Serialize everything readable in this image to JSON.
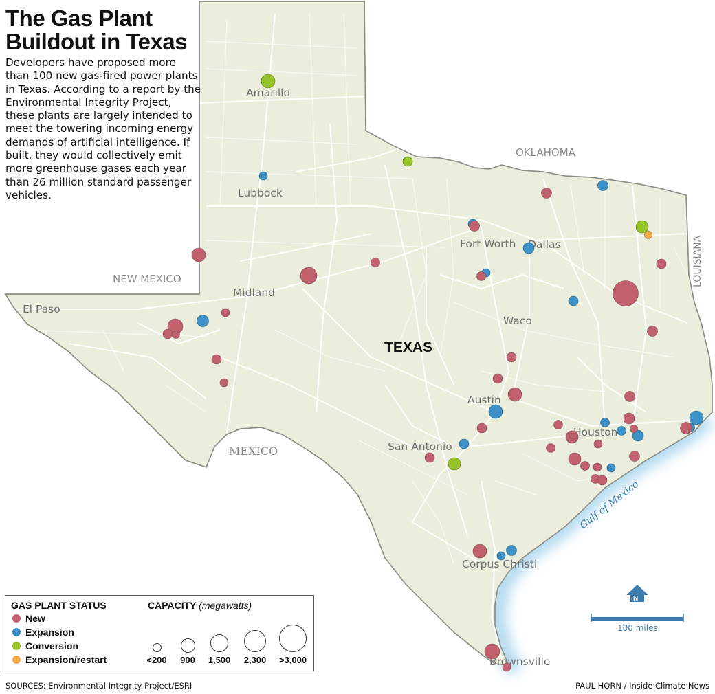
{
  "title": "The Gas Plant Buildout in Texas",
  "description": "Developers have proposed more than 100 new gas-fired power plants in Texas. According to a report by the Environmental Integrity Project, these plants are largely intended to meet the towering incoming energy demands of artificial intelligence. If built, they would collectively emit more greenhouse gases each year than 26 million standard passenger vehicles.",
  "state_label": "TEXAS",
  "region_labels": {
    "new_mexico": "NEW MEXICO",
    "oklahoma": "OKLAHOMA",
    "louisiana": "LOUISIANA",
    "mexico": "MEXICO",
    "gulf": "Gulf of Mexico"
  },
  "cities": {
    "amarillo": "Amarillo",
    "lubbock": "Lubbock",
    "midland": "Midland",
    "el_paso": "El Paso",
    "fort_worth": "Fort Worth",
    "dallas": "Dallas",
    "waco": "Waco",
    "austin": "Austin",
    "san_antonio": "San Antonio",
    "houston": "Houston",
    "corpus_christi": "Corpus Christi",
    "brownsville": "Brownsville"
  },
  "legend": {
    "status_heading": "GAS PLANT STATUS",
    "capacity_heading": "CAPACITY",
    "capacity_unit": "(megawatts)",
    "statuses": [
      {
        "label": "New",
        "color": "#c0616d"
      },
      {
        "label": "Expansion",
        "color": "#3d91c6"
      },
      {
        "label": "Conversion",
        "color": "#96c22a"
      },
      {
        "label": "Expansion/restart",
        "color": "#f0a944"
      }
    ],
    "capacity_labels": [
      "<200",
      "900",
      "1,500",
      "2,300",
      ">3,000"
    ]
  },
  "scale_label": "100 miles",
  "compass_label": "N",
  "sources": "SOURCES: Environmental Integrity Project/ESRI",
  "credit": "PAUL HORN / Inside Climate News",
  "colors": {
    "land": "#eceedd",
    "border": "#8d8d85",
    "roads": "#ffffff",
    "water_label": "#3a7bb0",
    "coast_glow": "#bfe0f1"
  }
}
